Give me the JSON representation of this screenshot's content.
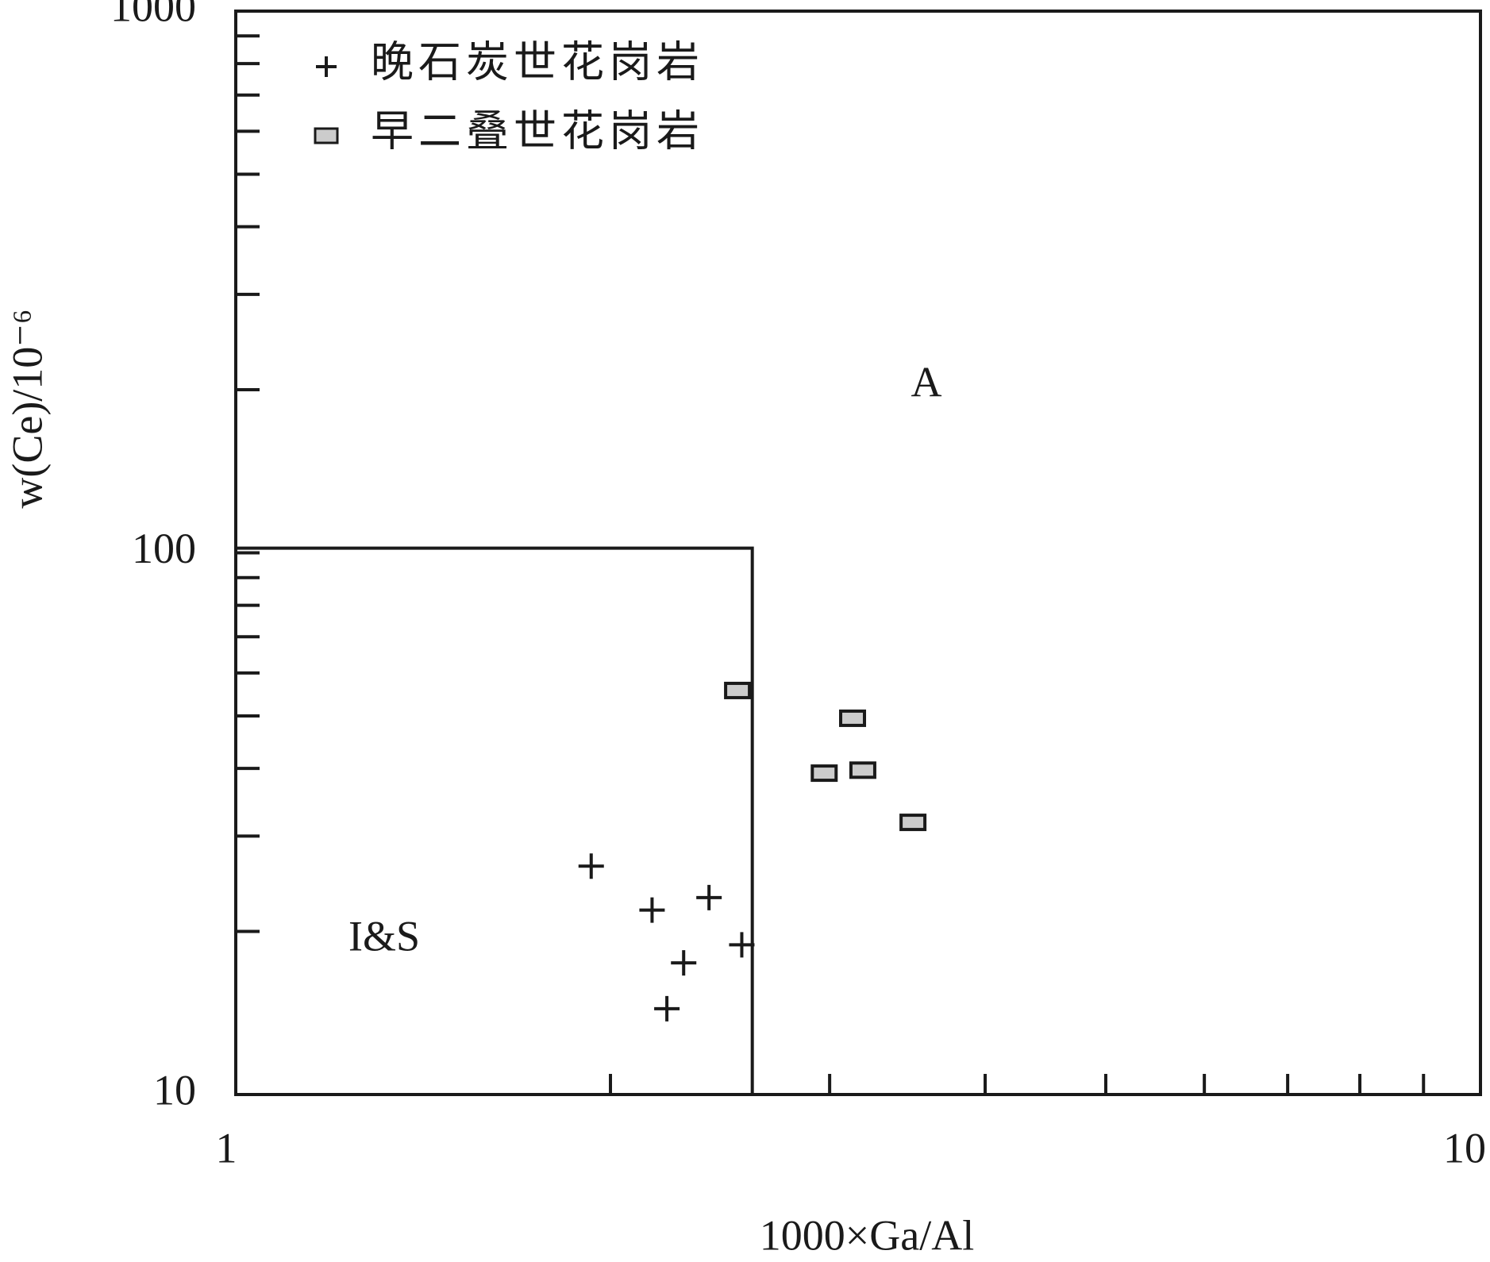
{
  "chart_data": {
    "type": "scatter",
    "x_label": "1000×Ga/Al",
    "y_label": "w(Ce)/10⁻⁶",
    "xscale": "log",
    "yscale": "log",
    "xlim": [
      1,
      10
    ],
    "ylim": [
      10,
      1000
    ],
    "xticks": [
      1,
      10
    ],
    "xminorticks": [
      2,
      3,
      4,
      5,
      6,
      7,
      8,
      9
    ],
    "yticks": [
      10,
      100,
      1000
    ],
    "yminorticks": [
      20,
      30,
      40,
      50,
      60,
      70,
      80,
      90,
      200,
      300,
      400,
      500,
      600,
      700,
      800,
      900
    ],
    "boundary": {
      "x": 2.6,
      "y": 102
    },
    "annotations": [
      "A",
      "I&S"
    ],
    "legend": "upper left",
    "series": [
      {
        "name": "晚石炭世花岗岩",
        "marker": "plus",
        "color": "#1a1a1a",
        "x": [
          1.93,
          2.16,
          2.4,
          2.55,
          2.29,
          2.22
        ],
        "values": [
          26.4,
          21.9,
          23.1,
          18.9,
          17.5,
          14.4
        ]
      },
      {
        "name": "早二叠世花岗岩",
        "marker": "rect",
        "color": "#cccccc",
        "x": [
          2.53,
          3.13,
          2.97,
          3.19,
          3.5
        ],
        "values": [
          55.7,
          49.5,
          39.2,
          39.7,
          31.8
        ]
      }
    ]
  }
}
